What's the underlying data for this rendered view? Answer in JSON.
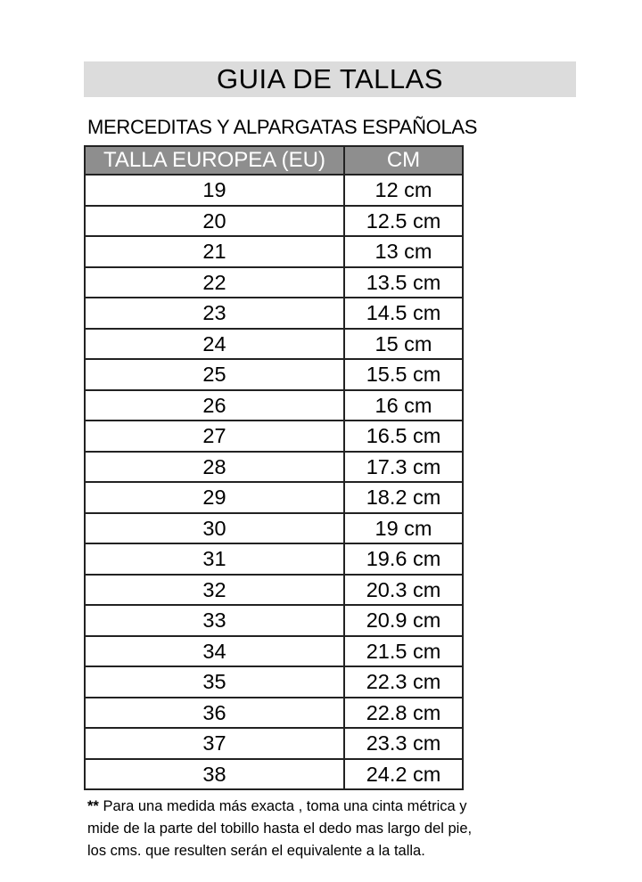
{
  "title": "GUIA DE TALLAS",
  "subtitle": "MERCEDITAS Y ALPARGATAS ESPAÑOLAS",
  "table": {
    "headers": [
      "TALLA EUROPEA (EU)",
      "CM"
    ],
    "rows": [
      [
        "19",
        "12 cm"
      ],
      [
        "20",
        "12.5 cm"
      ],
      [
        "21",
        "13 cm"
      ],
      [
        "22",
        "13.5 cm"
      ],
      [
        "23",
        "14.5 cm"
      ],
      [
        "24",
        "15 cm"
      ],
      [
        "25",
        "15.5 cm"
      ],
      [
        "26",
        "16 cm"
      ],
      [
        "27",
        "16.5 cm"
      ],
      [
        "28",
        "17.3 cm"
      ],
      [
        "29",
        "18.2 cm"
      ],
      [
        "30",
        "19 cm"
      ],
      [
        "31",
        "19.6 cm"
      ],
      [
        "32",
        "20.3 cm"
      ],
      [
        "33",
        "20.9 cm"
      ],
      [
        "34",
        "21.5 cm"
      ],
      [
        "35",
        "22.3 cm"
      ],
      [
        "36",
        "22.8 cm"
      ],
      [
        "37",
        "23.3 cm"
      ],
      [
        "38",
        "24.2 cm"
      ]
    ]
  },
  "note": {
    "marker": "**",
    "lines": [
      "Para una medida más exacta , toma una cinta métrica y",
      "mide de la parte del tobillo hasta el dedo mas largo del pie,",
      "los cms. que resulten serán el equivalente a la talla."
    ]
  },
  "colors": {
    "title_bg": "#dcdcdc",
    "header_bg": "#8e8e8e"
  }
}
